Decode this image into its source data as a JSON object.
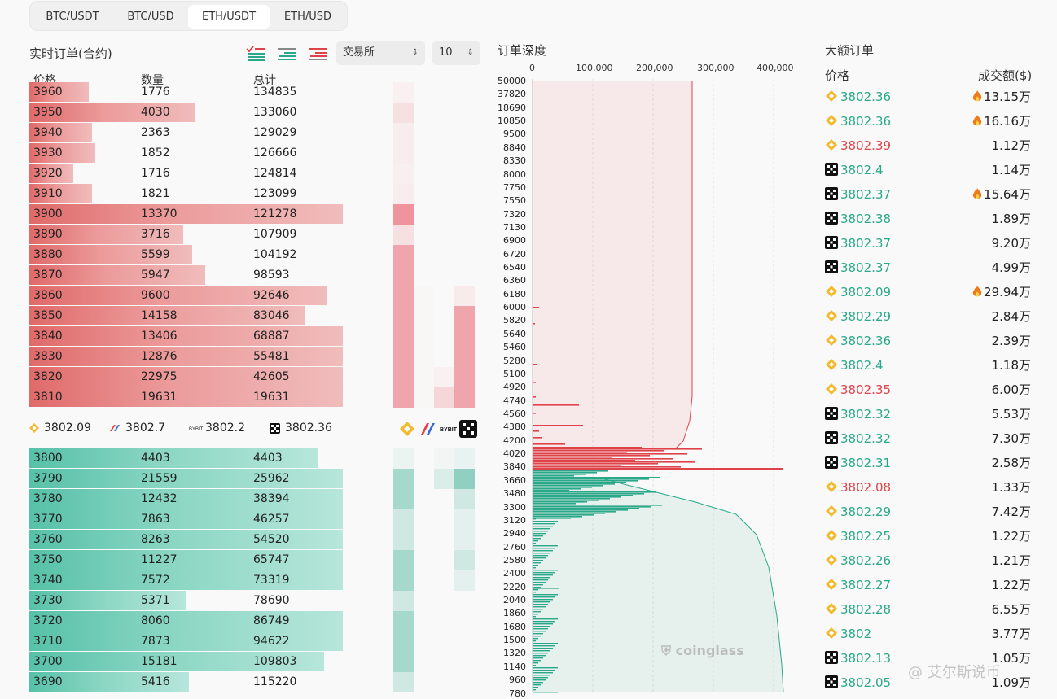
{
  "tabs": [
    "BTC/USDT",
    "BTC/USD",
    "ETH/USDT",
    "ETH/USD"
  ],
  "active_tab": "ETH/USDT",
  "orderbook": {
    "title": "实时订单(合约)",
    "exchange_select": "交易所",
    "depth_select": "10",
    "headers": {
      "price": "价格",
      "qty": "数量",
      "total": "总计"
    },
    "asks": [
      {
        "price": "3960",
        "qty": "1776",
        "total": "134835",
        "bar_pct": 19
      },
      {
        "price": "3950",
        "qty": "4030",
        "total": "133060",
        "bar_pct": 53
      },
      {
        "price": "3940",
        "qty": "2363",
        "total": "129029",
        "bar_pct": 20
      },
      {
        "price": "3930",
        "qty": "1852",
        "total": "126666",
        "bar_pct": 21
      },
      {
        "price": "3920",
        "qty": "1716",
        "total": "124814",
        "bar_pct": 14
      },
      {
        "price": "3910",
        "qty": "1821",
        "total": "123099",
        "bar_pct": 20
      },
      {
        "price": "3900",
        "qty": "13370",
        "total": "121278",
        "bar_pct": 100
      },
      {
        "price": "3890",
        "qty": "3716",
        "total": "107909",
        "bar_pct": 49
      },
      {
        "price": "3880",
        "qty": "5599",
        "total": "104192",
        "bar_pct": 52
      },
      {
        "price": "3870",
        "qty": "5947",
        "total": "98593",
        "bar_pct": 56
      },
      {
        "price": "3860",
        "qty": "9600",
        "total": "92646",
        "bar_pct": 95
      },
      {
        "price": "3850",
        "qty": "14158",
        "total": "83046",
        "bar_pct": 88
      },
      {
        "price": "3840",
        "qty": "13406",
        "total": "68887",
        "bar_pct": 100
      },
      {
        "price": "3830",
        "qty": "12876",
        "total": "55481",
        "bar_pct": 100
      },
      {
        "price": "3820",
        "qty": "22975",
        "total": "42605",
        "bar_pct": 100
      },
      {
        "price": "3810",
        "qty": "19631",
        "total": "19631",
        "bar_pct": 100
      }
    ],
    "bids": [
      {
        "price": "3800",
        "qty": "4403",
        "total": "4403",
        "bar_pct": 92
      },
      {
        "price": "3790",
        "qty": "21559",
        "total": "25962",
        "bar_pct": 100
      },
      {
        "price": "3780",
        "qty": "12432",
        "total": "38394",
        "bar_pct": 100
      },
      {
        "price": "3770",
        "qty": "7863",
        "total": "46257",
        "bar_pct": 100
      },
      {
        "price": "3760",
        "qty": "8263",
        "total": "54520",
        "bar_pct": 100
      },
      {
        "price": "3750",
        "qty": "11227",
        "total": "65747",
        "bar_pct": 100
      },
      {
        "price": "3740",
        "qty": "7572",
        "total": "73319",
        "bar_pct": 100
      },
      {
        "price": "3730",
        "qty": "5371",
        "total": "78690",
        "bar_pct": 50
      },
      {
        "price": "3720",
        "qty": "8060",
        "total": "86749",
        "bar_pct": 100
      },
      {
        "price": "3710",
        "qty": "7873",
        "total": "94622",
        "bar_pct": 100
      },
      {
        "price": "3700",
        "qty": "15181",
        "total": "109803",
        "bar_pct": 94
      },
      {
        "price": "3690",
        "qty": "5416",
        "total": "115220",
        "bar_pct": 51
      }
    ],
    "mid_prices": [
      {
        "exchange": "binance-icon",
        "price": "3802.09"
      },
      {
        "exchange": "bitmex-icon",
        "price": "3802.7"
      },
      {
        "exchange": "bybit-icon",
        "price": "3802.2"
      },
      {
        "exchange": "okx-icon",
        "price": "3802.36"
      }
    ],
    "heat_asks": [
      [
        0.05,
        0.0,
        0.0,
        0.0
      ],
      [
        0.15,
        0.0,
        0.0,
        0.0
      ],
      [
        0.07,
        0.0,
        0.0,
        0.0
      ],
      [
        0.07,
        0.0,
        0.0,
        0.0
      ],
      [
        0.06,
        0.0,
        0.0,
        0.0
      ],
      [
        0.07,
        0.0,
        0.0,
        0.0
      ],
      [
        0.6,
        0.0,
        0.0,
        0.0
      ],
      [
        0.15,
        0.0,
        0.0,
        0.0
      ],
      [
        0.5,
        0.0,
        0.0,
        0.0
      ],
      [
        0.5,
        0.0,
        0.0,
        0.0
      ],
      [
        0.5,
        0.02,
        0.0,
        0.08
      ],
      [
        0.5,
        0.02,
        0.0,
        0.5
      ],
      [
        0.5,
        0.02,
        0.0,
        0.5
      ],
      [
        0.5,
        0.02,
        0.0,
        0.5
      ],
      [
        0.5,
        0.02,
        0.05,
        0.5
      ],
      [
        0.5,
        0.02,
        0.2,
        0.5
      ]
    ],
    "heat_bids": [
      [
        0.06,
        0.0,
        0.04,
        0.08
      ],
      [
        0.4,
        0.0,
        0.15,
        0.5
      ],
      [
        0.4,
        0.0,
        0.0,
        0.2
      ],
      [
        0.2,
        0.0,
        0.0,
        0.1
      ],
      [
        0.2,
        0.0,
        0.0,
        0.1
      ],
      [
        0.4,
        0.0,
        0.0,
        0.2
      ],
      [
        0.4,
        0.0,
        0.0,
        0.1
      ],
      [
        0.2,
        0.0,
        0.0,
        0.0
      ],
      [
        0.4,
        0.0,
        0.0,
        0.0
      ],
      [
        0.4,
        0.0,
        0.0,
        0.0
      ],
      [
        0.4,
        0.0,
        0.0,
        0.0
      ],
      [
        0.2,
        0.0,
        0.0,
        0.0
      ]
    ]
  },
  "depth": {
    "title": "订单深度",
    "x_ticks": [
      "0",
      "100,000",
      "200,000",
      "300,000",
      "400,000"
    ],
    "y_ticks": [
      "50000",
      "37820",
      "18690",
      "10850",
      "9500",
      "8840",
      "8330",
      "8000",
      "7750",
      "7550",
      "7320",
      "7130",
      "6900",
      "6720",
      "6540",
      "6360",
      "6180",
      "6000",
      "5820",
      "5640",
      "5460",
      "5280",
      "5100",
      "4920",
      "4740",
      "4560",
      "4380",
      "4200",
      "4020",
      "3840",
      "3660",
      "3480",
      "3300",
      "3120",
      "2940",
      "2760",
      "2580",
      "2400",
      "2220",
      "2040",
      "1860",
      "1680",
      "1500",
      "1320",
      "1140",
      "960",
      "780"
    ],
    "watermark": "coinglass",
    "ask_color": "#e0424a",
    "bid_color": "#2aa889"
  },
  "large_orders": {
    "title": "大额订单",
    "headers": {
      "price": "价格",
      "amount": "成交额($)"
    },
    "rows": [
      {
        "ex": "binance",
        "price": "3802.36",
        "side": "buy",
        "amount": "13.15万",
        "hot": true
      },
      {
        "ex": "binance",
        "price": "3802.36",
        "side": "buy",
        "amount": "16.16万",
        "hot": true
      },
      {
        "ex": "binance",
        "price": "3802.39",
        "side": "sell",
        "amount": "1.12万",
        "hot": false
      },
      {
        "ex": "okx",
        "price": "3802.4",
        "side": "buy",
        "amount": "1.14万",
        "hot": false
      },
      {
        "ex": "okx",
        "price": "3802.37",
        "side": "buy",
        "amount": "15.64万",
        "hot": true
      },
      {
        "ex": "okx",
        "price": "3802.38",
        "side": "buy",
        "amount": "1.89万",
        "hot": false
      },
      {
        "ex": "okx",
        "price": "3802.37",
        "side": "buy",
        "amount": "9.20万",
        "hot": false
      },
      {
        "ex": "okx",
        "price": "3802.37",
        "side": "buy",
        "amount": "4.99万",
        "hot": false
      },
      {
        "ex": "binance",
        "price": "3802.09",
        "side": "buy",
        "amount": "29.94万",
        "hot": true
      },
      {
        "ex": "binance",
        "price": "3802.29",
        "side": "buy",
        "amount": "2.84万",
        "hot": false
      },
      {
        "ex": "binance",
        "price": "3802.36",
        "side": "buy",
        "amount": "2.39万",
        "hot": false
      },
      {
        "ex": "binance",
        "price": "3802.4",
        "side": "buy",
        "amount": "1.18万",
        "hot": false
      },
      {
        "ex": "binance",
        "price": "3802.35",
        "side": "sell",
        "amount": "6.00万",
        "hot": false
      },
      {
        "ex": "okx",
        "price": "3802.32",
        "side": "buy",
        "amount": "5.53万",
        "hot": false
      },
      {
        "ex": "okx",
        "price": "3802.32",
        "side": "buy",
        "amount": "7.30万",
        "hot": false
      },
      {
        "ex": "okx",
        "price": "3802.31",
        "side": "buy",
        "amount": "2.58万",
        "hot": false
      },
      {
        "ex": "binance",
        "price": "3802.08",
        "side": "sell",
        "amount": "1.33万",
        "hot": false
      },
      {
        "ex": "binance",
        "price": "3802.29",
        "side": "buy",
        "amount": "7.42万",
        "hot": false
      },
      {
        "ex": "binance",
        "price": "3802.25",
        "side": "buy",
        "amount": "1.22万",
        "hot": false
      },
      {
        "ex": "binance",
        "price": "3802.26",
        "side": "buy",
        "amount": "1.21万",
        "hot": false
      },
      {
        "ex": "binance",
        "price": "3802.27",
        "side": "buy",
        "amount": "1.22万",
        "hot": false
      },
      {
        "ex": "binance",
        "price": "3802.28",
        "side": "buy",
        "amount": "6.55万",
        "hot": false
      },
      {
        "ex": "binance",
        "price": "3802",
        "side": "buy",
        "amount": "3.77万",
        "hot": false
      },
      {
        "ex": "okx",
        "price": "3802.13",
        "side": "buy",
        "amount": "1.05万",
        "hot": false
      },
      {
        "ex": "okx",
        "price": "3802.05",
        "side": "buy",
        "amount": "1.09万",
        "hot": false
      }
    ]
  },
  "footer_watermark": "@ 艾尔斯说币"
}
